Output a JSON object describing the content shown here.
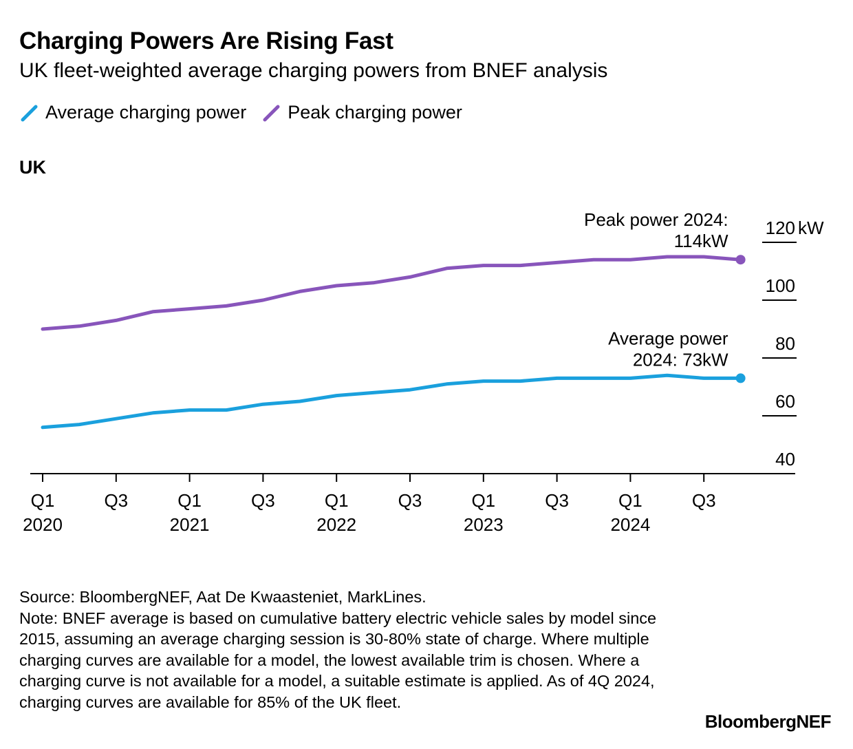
{
  "title": "Charging Powers Are Rising Fast",
  "subtitle": "UK fleet-weighted average charging powers from BNEF analysis",
  "panel_label": "UK",
  "source": "Source: BloombergNEF, Aat De Kwaasteniet, MarkLines.",
  "note": "Note: BNEF average is based on cumulative battery electric vehicle sales by model since 2015, assuming an average charging session is 30-80% state of charge. Where multiple charging curves are available for a model, the lowest available trim is chosen. Where a charging curve is not available for a model, a suitable estimate is applied. As of 4Q 2024, charging curves are available for 85% of the UK fleet.",
  "brand": "BloombergNEF",
  "colors": {
    "average": "#1aa0dd",
    "peak": "#8855bb",
    "axis": "#000000"
  },
  "chart_data": {
    "type": "line",
    "x": [
      "Q1 2020",
      "Q2 2020",
      "Q3 2020",
      "Q4 2020",
      "Q1 2021",
      "Q2 2021",
      "Q3 2021",
      "Q4 2021",
      "Q1 2022",
      "Q2 2022",
      "Q3 2022",
      "Q4 2022",
      "Q1 2023",
      "Q2 2023",
      "Q3 2023",
      "Q4 2023",
      "Q1 2024",
      "Q2 2024",
      "Q3 2024",
      "Q4 2024"
    ],
    "x_ticks": [
      {
        "line1": "Q1",
        "line2": "2020"
      },
      {
        "line1": "Q3",
        "line2": ""
      },
      {
        "line1": "Q1",
        "line2": "2021"
      },
      {
        "line1": "Q3",
        "line2": ""
      },
      {
        "line1": "Q1",
        "line2": "2022"
      },
      {
        "line1": "Q3",
        "line2": ""
      },
      {
        "line1": "Q1",
        "line2": "2023"
      },
      {
        "line1": "Q3",
        "line2": ""
      },
      {
        "line1": "Q1",
        "line2": "2024"
      },
      {
        "line1": "Q3",
        "line2": ""
      }
    ],
    "series": [
      {
        "name": "Average charging power",
        "key": "average",
        "values": [
          56,
          57,
          59,
          61,
          62,
          62,
          64,
          65,
          67,
          68,
          69,
          71,
          72,
          72,
          73,
          73,
          73,
          74,
          73,
          73
        ]
      },
      {
        "name": "Peak charging power",
        "key": "peak",
        "values": [
          90,
          91,
          93,
          96,
          97,
          98,
          100,
          103,
          105,
          106,
          108,
          111,
          112,
          112,
          113,
          114,
          114,
          115,
          115,
          114
        ]
      }
    ],
    "ylim": [
      40,
      120
    ],
    "y_ticks": [
      {
        "value": 40,
        "label": "40"
      },
      {
        "value": 60,
        "label": "60"
      },
      {
        "value": 80,
        "label": "80"
      },
      {
        "value": 100,
        "label": "100"
      },
      {
        "value": 120,
        "label": "120",
        "unit": "kW"
      }
    ],
    "annotations": [
      {
        "series": "peak",
        "lines": [
          "Peak power 2024:",
          "114kW"
        ]
      },
      {
        "series": "average",
        "lines": [
          "Average power",
          "2024: 73kW"
        ]
      }
    ],
    "y_axis_side": "right",
    "grid": false
  }
}
